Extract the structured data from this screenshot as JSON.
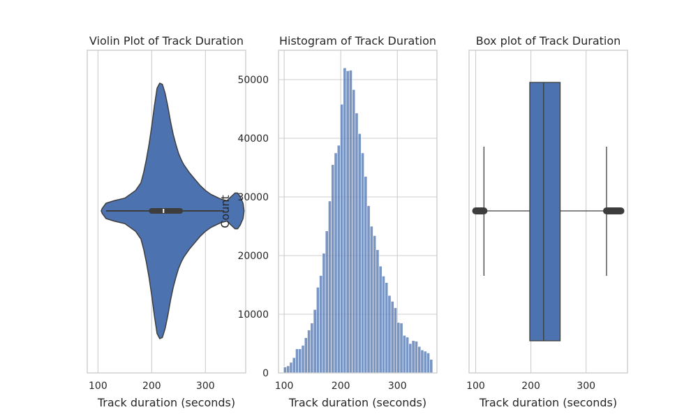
{
  "chart_data": [
    {
      "type": "violin",
      "title": "Violin Plot of Track Duration",
      "xlabel": "Track duration (seconds)",
      "ylabel": "",
      "xlim": [
        80,
        375
      ],
      "xticks": [
        100,
        200,
        300
      ],
      "grid": true,
      "color": "#4c72b0",
      "density": {
        "x": [
          108,
          115,
          130,
          150,
          160,
          170,
          180,
          185,
          190,
          195,
          200,
          205,
          210,
          215,
          220,
          225,
          230,
          235,
          240,
          245,
          250,
          255,
          260,
          270,
          280,
          290,
          300,
          310,
          320,
          330,
          340,
          345,
          350,
          355,
          360,
          365,
          370
        ],
        "d": [
          0.02,
          0.06,
          0.08,
          0.1,
          0.13,
          0.16,
          0.22,
          0.3,
          0.4,
          0.52,
          0.66,
          0.82,
          0.96,
          1.0,
          0.99,
          0.92,
          0.82,
          0.7,
          0.6,
          0.52,
          0.45,
          0.4,
          0.36,
          0.3,
          0.25,
          0.2,
          0.16,
          0.13,
          0.11,
          0.09,
          0.08,
          0.1,
          0.12,
          0.14,
          0.14,
          0.11,
          0.06
        ]
      },
      "box": {
        "min": 115,
        "q1": 200,
        "median": 222,
        "q3": 253,
        "max": 335
      }
    },
    {
      "type": "bar",
      "title": "Histogram of Track Duration",
      "xlabel": "Track duration (seconds)",
      "ylabel": "Count",
      "xlim": [
        90,
        370
      ],
      "ylim": [
        0,
        55000
      ],
      "xticks": [
        100,
        200,
        300
      ],
      "yticks": [
        0,
        10000,
        20000,
        30000,
        40000,
        50000
      ],
      "grid": true,
      "color": "#4c72b0",
      "bin_start": 99,
      "bin_width": 5.27,
      "values": [
        1000,
        1200,
        1800,
        2600,
        4100,
        4100,
        4700,
        6000,
        7300,
        8500,
        10800,
        14600,
        16600,
        20400,
        24200,
        29300,
        35500,
        37500,
        38800,
        45800,
        52000,
        51500,
        51600,
        48300,
        44300,
        40800,
        37500,
        33500,
        28500,
        25000,
        23400,
        21000,
        18200,
        16500,
        15400,
        13200,
        12200,
        11100,
        8600,
        8500,
        6400,
        6100,
        5000,
        5500,
        5400,
        4500,
        3900,
        3700,
        3400,
        2300
      ]
    },
    {
      "type": "box",
      "title": "Box plot of Track Duration",
      "xlabel": "Track duration (seconds)",
      "ylabel": "",
      "xlim": [
        88,
        375
      ],
      "xticks": [
        100,
        200,
        300
      ],
      "grid": true,
      "color": "#4c72b0",
      "box": {
        "whisker_low": 115,
        "q1": 198,
        "median": 223,
        "q3": 253,
        "whisker_high": 337,
        "outliers_low": [
          100,
          115
        ],
        "outliers_high": [
          337,
          363
        ]
      }
    }
  ]
}
